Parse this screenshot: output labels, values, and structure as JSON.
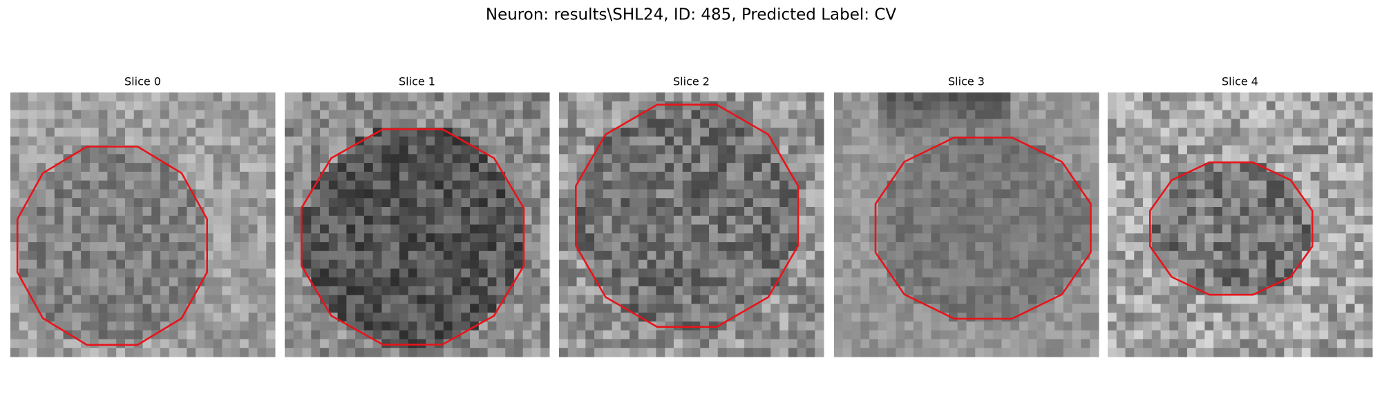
{
  "title": "Neuron: results\\SHL24, ID: 485, Predicted Label: CV",
  "panels": [
    {
      "title": "Slice 0"
    },
    {
      "title": "Slice 1"
    },
    {
      "title": "Slice 2"
    },
    {
      "title": "Slice 3"
    },
    {
      "title": "Slice 4"
    }
  ]
}
